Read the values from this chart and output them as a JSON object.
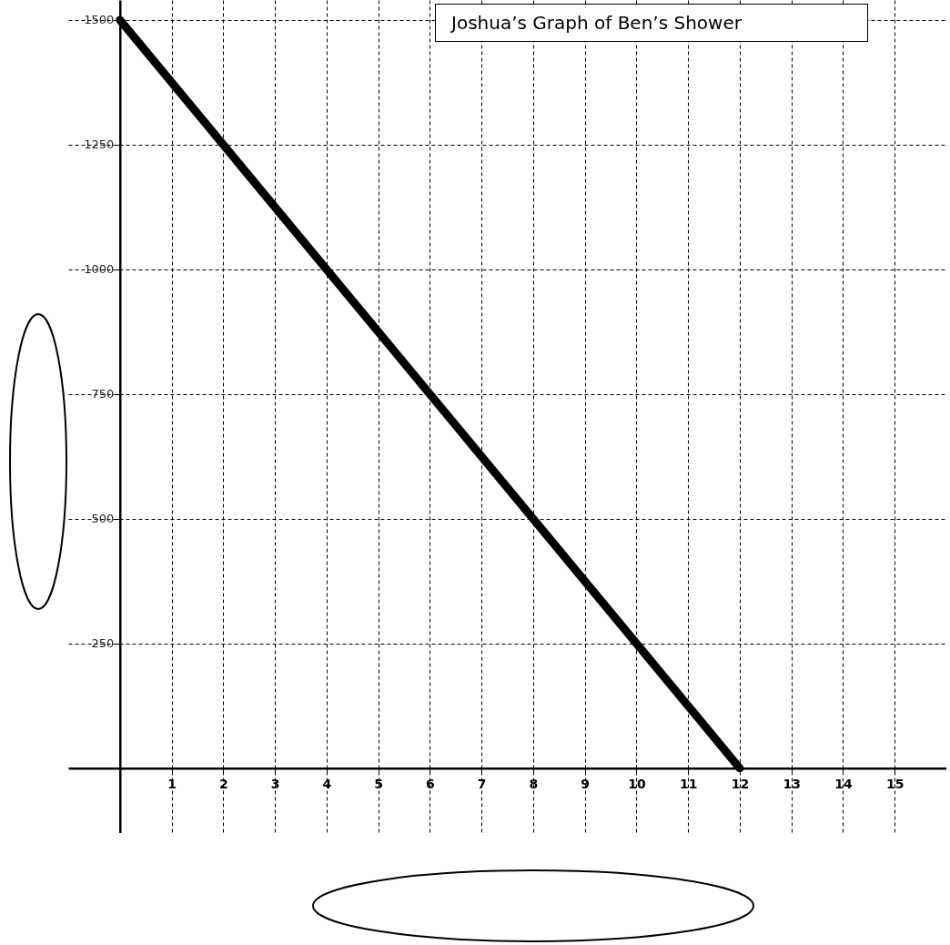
{
  "chart_data": {
    "type": "line",
    "title": "Joshua’s Graph of Ben’s Shower",
    "x": [
      0,
      12
    ],
    "series": [
      {
        "color": "#000000",
        "values": [
          1500,
          0
        ]
      }
    ],
    "xlim": [
      -1,
      16
    ],
    "ylim": [
      -130,
      1540
    ],
    "xticks": [
      1,
      2,
      3,
      4,
      5,
      6,
      7,
      8,
      9,
      10,
      11,
      12,
      13,
      14,
      15
    ],
    "yticks": [
      250,
      500,
      750,
      1000,
      1250,
      1500
    ],
    "grid": true,
    "line_style": "solid"
  }
}
